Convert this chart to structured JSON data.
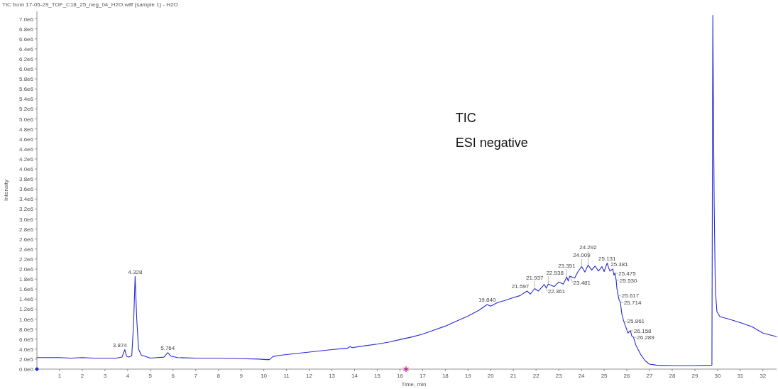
{
  "chart_data": {
    "type": "line",
    "title": "TIC from 17-05-29_TOF_C18_25_neg_04_H2O.wiff (sample 1) - H2O",
    "xlabel": "Time, min",
    "ylabel": "Intensity",
    "color": "#2a2ad4",
    "x": [
      0,
      0.5,
      1,
      1.5,
      2,
      2.5,
      3,
      3.5,
      3.75,
      3.874,
      3.95,
      4.05,
      4.18,
      4.26,
      4.328,
      4.4,
      4.48,
      4.6,
      4.75,
      5,
      5.3,
      5.6,
      5.764,
      5.9,
      6.2,
      7,
      8,
      9,
      9.8,
      10.1,
      10.25,
      10.4,
      10.6,
      11,
      12,
      13,
      13.7,
      13.8,
      13.9,
      14.5,
      15,
      15.5,
      16,
      16.5,
      17,
      17.5,
      18,
      18.5,
      19,
      19.5,
      19.84,
      20,
      20.3,
      20.6,
      21,
      21.3,
      21.597,
      21.75,
      21.937,
      22.1,
      22.361,
      22.45,
      22.538,
      22.8,
      23,
      23.2,
      23.351,
      23.42,
      23.481,
      23.7,
      23.85,
      24.009,
      24.15,
      24.292,
      24.45,
      24.6,
      24.75,
      24.9,
      25,
      25.131,
      25.25,
      25.381,
      25.43,
      25.475,
      25.53,
      25.56,
      25.617,
      25.66,
      25.714,
      25.78,
      25.861,
      25.95,
      26.05,
      26.158,
      26.22,
      26.289,
      26.4,
      26.6,
      26.8,
      27,
      27.3,
      28,
      29,
      29.75,
      29.79,
      29.82,
      29.85,
      29.9,
      29.97,
      30.1,
      30.5,
      31,
      31.5,
      32,
      32.6
    ],
    "values": [
      230000,
      230000,
      230000,
      220000,
      230000,
      220000,
      220000,
      220000,
      240000,
      390000,
      260000,
      240000,
      270000,
      900000,
      1850000,
      1000000,
      400000,
      280000,
      260000,
      220000,
      230000,
      240000,
      330000,
      260000,
      230000,
      220000,
      220000,
      210000,
      200000,
      190000,
      190000,
      250000,
      270000,
      290000,
      340000,
      390000,
      420000,
      450000,
      430000,
      470000,
      500000,
      540000,
      590000,
      640000,
      700000,
      780000,
      860000,
      960000,
      1060000,
      1180000,
      1290000,
      1260000,
      1330000,
      1370000,
      1430000,
      1470000,
      1560000,
      1500000,
      1610000,
      1560000,
      1690000,
      1620000,
      1700000,
      1650000,
      1740000,
      1700000,
      1840000,
      1760000,
      1860000,
      1820000,
      1950000,
      2050000,
      1940000,
      2080000,
      1980000,
      2060000,
      1960000,
      2050000,
      1950000,
      2120000,
      1960000,
      2000000,
      1880000,
      1920000,
      1780000,
      1620000,
      1470000,
      1380000,
      1340000,
      1100000,
      960000,
      850000,
      720000,
      770000,
      660000,
      640000,
      480000,
      300000,
      170000,
      100000,
      80000,
      70000,
      70000,
      80000,
      7070000,
      5000000,
      3300000,
      1600000,
      1150000,
      1050000,
      1000000,
      930000,
      850000,
      720000,
      650000
    ],
    "xlim": [
      0,
      32.6
    ],
    "xticks": [
      1,
      2,
      3,
      4,
      5,
      6,
      7,
      8,
      9,
      10,
      11,
      12,
      13,
      14,
      15,
      16,
      17,
      18,
      19,
      20,
      21,
      22,
      23,
      24,
      25,
      26,
      27,
      28,
      29,
      30,
      31,
      32
    ],
    "ylim": [
      0,
      7150000
    ],
    "yticks": [
      {
        "value": 0,
        "label": "0.0e0"
      },
      {
        "value": 200000,
        "label": "2.0e5"
      },
      {
        "value": 400000,
        "label": "4.0e5"
      },
      {
        "value": 600000,
        "label": "6.0e5"
      },
      {
        "value": 800000,
        "label": "8.0e5"
      },
      {
        "value": 1000000,
        "label": "1.0e6"
      },
      {
        "value": 1200000,
        "label": "1.2e6"
      },
      {
        "value": 1400000,
        "label": "1.4e6"
      },
      {
        "value": 1600000,
        "label": "1.6e6"
      },
      {
        "value": 1800000,
        "label": "1.8e6"
      },
      {
        "value": 2000000,
        "label": "2.0e6"
      },
      {
        "value": 2200000,
        "label": "2.2e6"
      },
      {
        "value": 2400000,
        "label": "2.4e6"
      },
      {
        "value": 2600000,
        "label": "2.6e6"
      },
      {
        "value": 2800000,
        "label": "2.8e6"
      },
      {
        "value": 3000000,
        "label": "3.0e6"
      },
      {
        "value": 3200000,
        "label": "3.2e6"
      },
      {
        "value": 3400000,
        "label": "3.4e6"
      },
      {
        "value": 3600000,
        "label": "3.6e6"
      },
      {
        "value": 3800000,
        "label": "3.8e6"
      },
      {
        "value": 4000000,
        "label": "4.0e6"
      },
      {
        "value": 4200000,
        "label": "4.2e6"
      },
      {
        "value": 4400000,
        "label": "4.4e6"
      },
      {
        "value": 4600000,
        "label": "4.6e6"
      },
      {
        "value": 4800000,
        "label": "4.8e6"
      },
      {
        "value": 5000000,
        "label": "5.0e6"
      },
      {
        "value": 5200000,
        "label": "5.2e6"
      },
      {
        "value": 5400000,
        "label": "5.4e6"
      },
      {
        "value": 5600000,
        "label": "5.6e6"
      },
      {
        "value": 5800000,
        "label": "5.8e6"
      },
      {
        "value": 6000000,
        "label": "6.0e6"
      },
      {
        "value": 6200000,
        "label": "6.2e6"
      },
      {
        "value": 6400000,
        "label": "6.4e6"
      },
      {
        "value": 6600000,
        "label": "6.6e6"
      },
      {
        "value": 6800000,
        "label": "6.8e6"
      },
      {
        "value": 7000000,
        "label": "7.0e6"
      }
    ],
    "annotations": [
      "TIC",
      "ESI negative",
      {
        "text": "3.874",
        "x": 3.874,
        "y": 390000
      },
      {
        "text": "4.328",
        "x": 4.328,
        "y": 1850000
      },
      {
        "text": "5.764",
        "x": 5.764,
        "y": 330000
      },
      {
        "text": "19.840",
        "x": 19.84,
        "y": 1290000
      },
      {
        "text": "21.597",
        "x": 21.597,
        "y": 1560000
      },
      {
        "text": "21.937",
        "x": 21.937,
        "y": 1610000
      },
      {
        "text": "22.361",
        "x": 22.361,
        "y": 1690000
      },
      {
        "text": "22.538",
        "x": 22.538,
        "y": 1700000
      },
      {
        "text": "23.351",
        "x": 23.351,
        "y": 1840000
      },
      {
        "text": "23.481",
        "x": 23.481,
        "y": 1860000
      },
      {
        "text": "24.009",
        "x": 24.009,
        "y": 2050000
      },
      {
        "text": "24.292",
        "x": 24.292,
        "y": 2080000
      },
      {
        "text": "25.131",
        "x": 25.131,
        "y": 2120000
      },
      {
        "text": "25.381",
        "x": 25.381,
        "y": 2000000
      },
      {
        "text": "25.475",
        "x": 25.475,
        "y": 1920000
      },
      {
        "text": "25.530",
        "x": 25.53,
        "y": 1780000
      },
      {
        "text": "25.617",
        "x": 25.617,
        "y": 1470000
      },
      {
        "text": "25.714",
        "x": 25.714,
        "y": 1340000
      },
      {
        "text": "25.861",
        "x": 25.861,
        "y": 960000
      },
      {
        "text": "26.158",
        "x": 26.158,
        "y": 770000
      },
      {
        "text": "26.289",
        "x": 26.289,
        "y": 640000
      }
    ]
  }
}
